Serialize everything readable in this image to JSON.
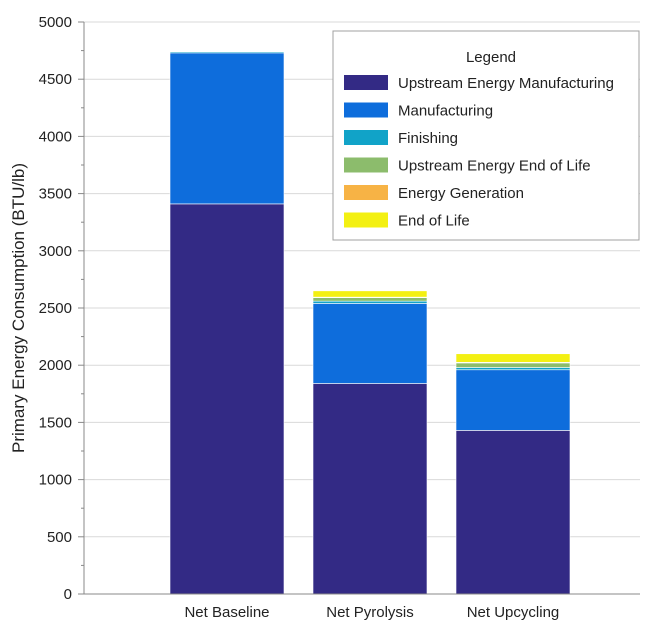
{
  "chart_data": {
    "type": "bar",
    "stacked": true,
    "title": "",
    "xlabel": "",
    "ylabel": "Primary Energy Consumption (BTU/lb)",
    "ylim": [
      0,
      5000
    ],
    "yticks": [
      0,
      500,
      1000,
      1500,
      2000,
      2500,
      3000,
      3500,
      4000,
      4500,
      5000
    ],
    "grid": true,
    "categories": [
      "Net Baseline",
      "Net Pyrolysis",
      "Net Upcycling"
    ],
    "series": [
      {
        "name": "Upstream Energy Manufacturing",
        "color": "#332a85",
        "values": [
          3410,
          1840,
          1430
        ]
      },
      {
        "name": "Manufacturing",
        "color": "#0e6ddc",
        "values": [
          1320,
          700,
          530
        ]
      },
      {
        "name": "Finishing",
        "color": "#11a3c8",
        "values": [
          10,
          20,
          20
        ]
      },
      {
        "name": "Upstream Energy End of Life",
        "color": "#8cbc6c",
        "values": [
          0,
          30,
          40
        ]
      },
      {
        "name": "Energy Generation",
        "color": "#f7b345",
        "values": [
          0,
          5,
          5
        ]
      },
      {
        "name": "End of Life",
        "color": "#f3f012",
        "values": [
          0,
          55,
          75
        ]
      }
    ],
    "legend": {
      "title": "Legend",
      "position": "top-right"
    }
  }
}
